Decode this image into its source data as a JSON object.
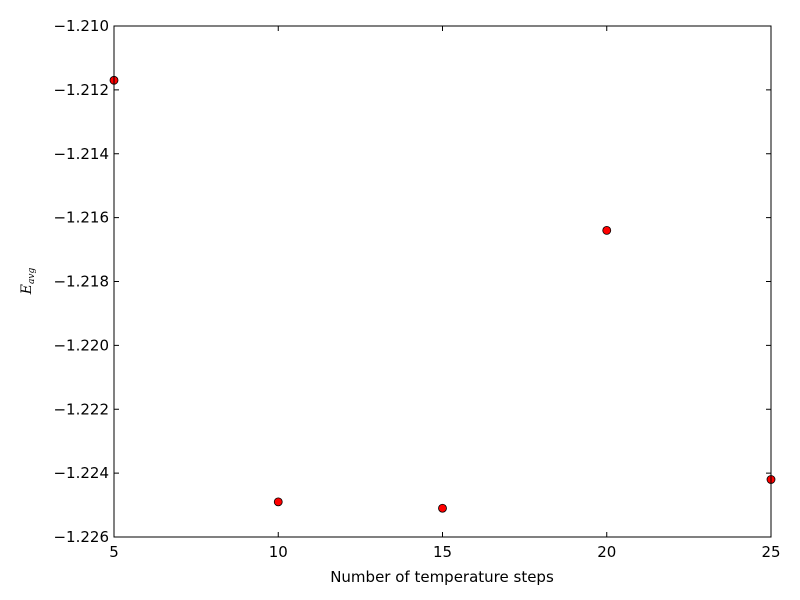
{
  "chart_data": {
    "type": "scatter",
    "title": "",
    "xlabel": "Number of temperature steps",
    "ylabel": "E",
    "ylabel_subscript": "avg",
    "xlim": [
      5,
      25
    ],
    "ylim": [
      -1.226,
      -1.21
    ],
    "x_ticks": [
      5,
      10,
      15,
      20,
      25
    ],
    "x_tick_labels": [
      "5",
      "10",
      "15",
      "20",
      "25"
    ],
    "y_ticks": [
      -1.226,
      -1.224,
      -1.222,
      -1.22,
      -1.218,
      -1.216,
      -1.214,
      -1.212,
      -1.21
    ],
    "y_tick_labels": [
      "−1.226",
      "−1.224",
      "−1.222",
      "−1.220",
      "−1.218",
      "−1.216",
      "−1.214",
      "−1.212",
      "−1.210"
    ],
    "grid": false,
    "marker_color": "#ff0000",
    "marker_edge_color": "#000000",
    "series": [
      {
        "x": [
          5,
          10,
          15,
          20,
          25
        ],
        "y": [
          -1.2117,
          -1.2249,
          -1.2251,
          -1.2164,
          -1.2242
        ]
      }
    ]
  }
}
